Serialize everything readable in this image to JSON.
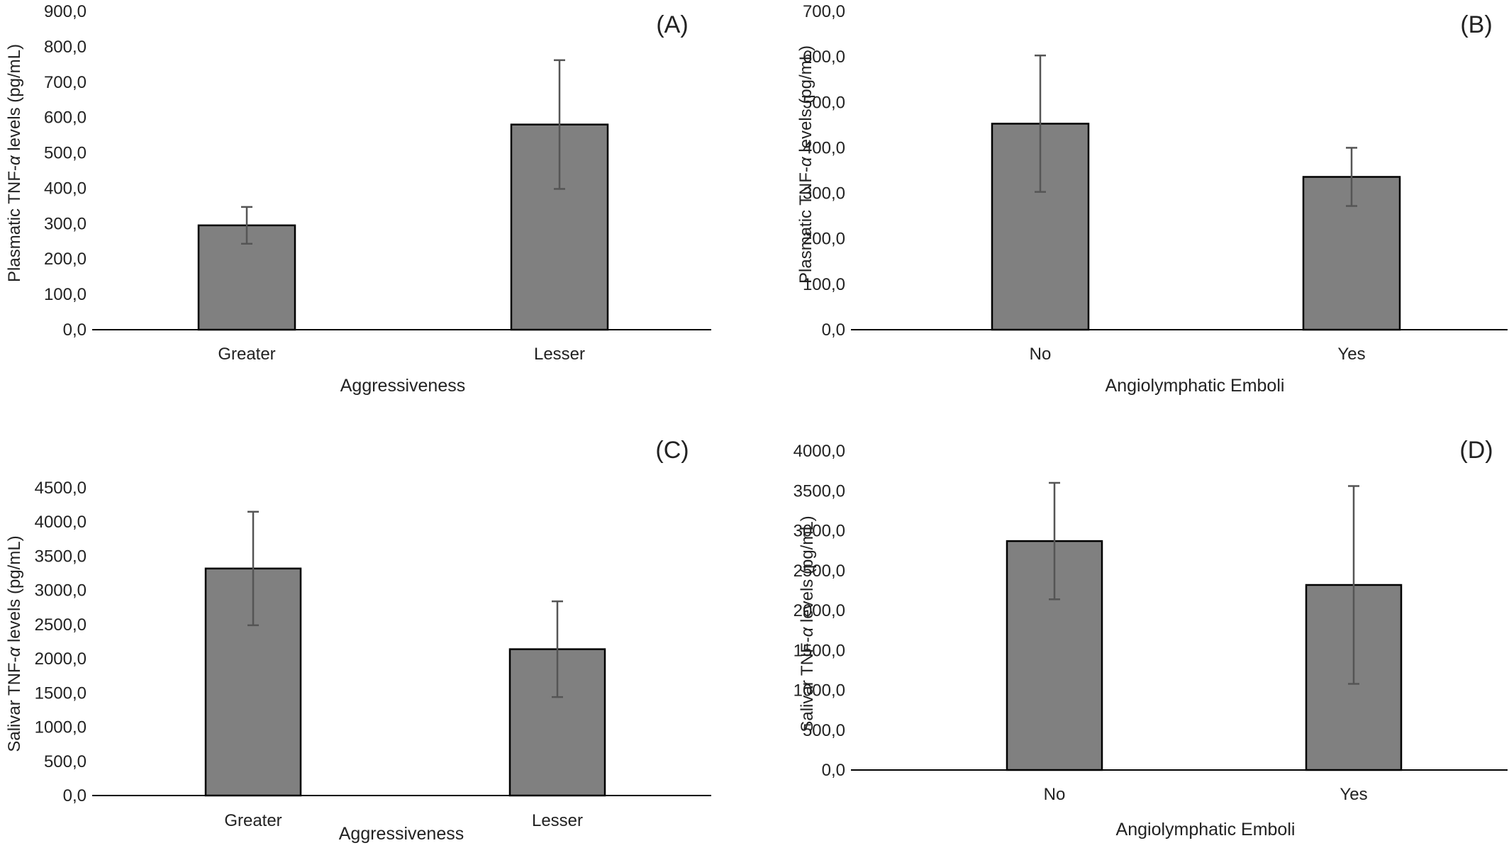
{
  "bar_fill": "#808080",
  "bar_stroke": "#000000",
  "error_bar_color": "#555555",
  "chart_data": [
    {
      "type": "bar",
      "panel_label": "(A)",
      "ylabel_main": "Plasmatic TNF-",
      "ylabel_greek": "α",
      "ylabel_rest": " levels (pg/mL)",
      "xlabel": "Aggressiveness",
      "categories": [
        "Greater",
        "Lesser"
      ],
      "values": [
        295,
        580
      ],
      "errors": [
        52,
        182
      ],
      "ylim": [
        0,
        900
      ],
      "ytick_step": 100,
      "ytick_labels": [
        "0,0",
        "100,0",
        "200,0",
        "300,0",
        "400,0",
        "500,0",
        "600,0",
        "700,0",
        "800,0",
        "900,0"
      ],
      "grid": false
    },
    {
      "type": "bar",
      "panel_label": "(B)",
      "ylabel_main": "Plasmatic TNF-",
      "ylabel_greek": "α",
      "ylabel_rest": " levels (pg/mL)",
      "xlabel": "Angiolymphatic Emboli",
      "categories": [
        "No",
        "Yes"
      ],
      "values": [
        453,
        336
      ],
      "errors": [
        150,
        64
      ],
      "ylim": [
        0,
        700
      ],
      "ytick_step": 100,
      "ytick_labels": [
        "0,0",
        "100,0",
        "200,0",
        "300,0",
        "400,0",
        "500,0",
        "600,0",
        "700,0"
      ],
      "grid": false
    },
    {
      "type": "bar",
      "panel_label": "(C)",
      "ylabel_main": "Salivar TNF-",
      "ylabel_greek": "α",
      "ylabel_rest": "  levels (pg/mL)",
      "xlabel": "Aggressiveness",
      "categories": [
        "Greater",
        "Lesser"
      ],
      "values": [
        3320,
        2140
      ],
      "errors": [
        830,
        700
      ],
      "ylim": [
        0,
        4500
      ],
      "ytick_step": 500,
      "ytick_labels": [
        "0,0",
        "500,0",
        "1000,0",
        "1500,0",
        "2000,0",
        "2500,0",
        "3000,0",
        "3500,0",
        "4000,0",
        "4500,0"
      ],
      "grid": false
    },
    {
      "type": "bar",
      "panel_label": "(D)",
      "ylabel_main": "Salivar TNF-",
      "ylabel_greek": "α",
      "ylabel_rest": "  levels (pg/mL)",
      "xlabel": "Angiolymphatic Emboli",
      "categories": [
        "No",
        "Yes"
      ],
      "values": [
        2870,
        2320
      ],
      "errors": [
        730,
        1240
      ],
      "ylim": [
        0,
        4000
      ],
      "ytick_step": 500,
      "ytick_labels": [
        "0,0",
        "500,0",
        "1000,0",
        "1500,0",
        "2000,0",
        "2500,0",
        "3000,0",
        "3500,0",
        "4000,0"
      ],
      "grid": false
    }
  ]
}
